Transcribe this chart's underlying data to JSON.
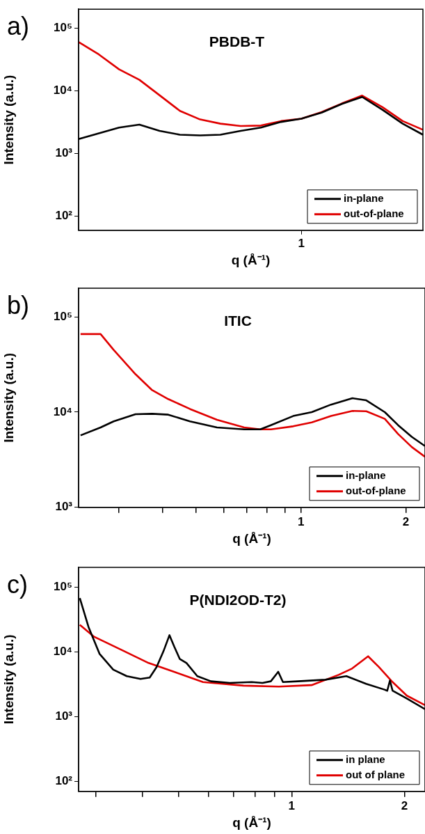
{
  "chart_data": [
    {
      "type": "line",
      "title": "PBDB-T",
      "xlabel": "q (Å⁻¹)",
      "ylabel": "Intensity (a.u.)",
      "annotations": [
        "a)"
      ],
      "log": "xy",
      "legend": "bottom right",
      "grid": false,
      "ylim": [
        60,
        200000
      ],
      "yticks": [
        {
          "value": 100,
          "label": "10²"
        },
        {
          "value": 1000,
          "label": "10³"
        },
        {
          "value": 10000,
          "label": "10⁴"
        },
        {
          "value": 100000,
          "label": "10⁵"
        }
      ],
      "categories": [
        null,
        null,
        null,
        null,
        null,
        null,
        null,
        null,
        null,
        null,
        null,
        "1",
        null,
        null,
        null,
        null,
        null,
        null
      ],
      "series": [
        {
          "name": "in-plane",
          "color": "#000000",
          "values": [
            1700,
            2100,
            2600,
            2900,
            2300,
            2000,
            1950,
            2000,
            2300,
            2600,
            3200,
            3600,
            4500,
            6200,
            8000,
            5000,
            3000,
            2000
          ]
        },
        {
          "name": "out-of-plane",
          "color": "#e00000",
          "values": [
            60000,
            38000,
            22000,
            15000,
            8500,
            4800,
            3500,
            3000,
            2750,
            2800,
            3300,
            3600,
            4600,
            6300,
            8400,
            5500,
            3300,
            2400
          ]
        }
      ]
    },
    {
      "type": "line",
      "title": "ITIC",
      "xlabel": "q (Å⁻¹)",
      "ylabel": "Intensity (a.u.)",
      "annotations": [
        "b)"
      ],
      "log": "xy",
      "legend": "bottom right",
      "grid": false,
      "xlim": [
        0.23,
        2.27
      ],
      "ylim": [
        1000,
        200000
      ],
      "xticks": [
        {
          "value": 0.3,
          "label": null
        },
        {
          "value": 0.4,
          "label": null
        },
        {
          "value": 0.5,
          "label": null
        },
        {
          "value": 0.6,
          "label": null
        },
        {
          "value": 0.7,
          "label": null
        },
        {
          "value": 0.8,
          "label": null
        },
        {
          "value": 0.9,
          "label": null
        },
        {
          "value": 1,
          "label": "1"
        },
        {
          "value": 2,
          "label": "2"
        }
      ],
      "yticks": [
        {
          "value": 1000,
          "label": "10³"
        },
        {
          "value": 10000,
          "label": "10⁴"
        },
        {
          "value": 100000,
          "label": "10⁵"
        }
      ],
      "x": [
        0.233,
        0.266,
        0.29,
        0.335,
        0.374,
        0.416,
        0.48,
        0.574,
        0.687,
        0.764,
        0.82,
        0.95,
        1.074,
        1.22,
        1.405,
        1.54,
        1.74,
        1.9,
        2.08,
        2.27
      ],
      "series": [
        {
          "name": "in-plane",
          "color": "#000000",
          "values": [
            5700,
            6900,
            8000,
            9500,
            9600,
            9400,
            8000,
            6900,
            6600,
            6600,
            7300,
            9100,
            10000,
            12000,
            14000,
            13300,
            10000,
            7300,
            5500,
            4400
          ]
        },
        {
          "name": "out-of-plane",
          "color": "#e00000",
          "values": [
            66000,
            66000,
            45000,
            25000,
            17000,
            13700,
            10800,
            8300,
            6900,
            6600,
            6600,
            7100,
            7800,
            9100,
            10300,
            10200,
            8500,
            5900,
            4300,
            3400
          ]
        }
      ]
    },
    {
      "type": "line",
      "title": "P(NDI2OD-T2)",
      "xlabel": "q (Å⁻¹)",
      "ylabel": "Intensity (a.u.)",
      "annotations": [
        "c)"
      ],
      "log": "xy",
      "legend": "bottom right",
      "grid": false,
      "xlim": [
        0.27,
        2.27
      ],
      "ylim": [
        70,
        200000
      ],
      "xticks": [
        {
          "value": 0.3,
          "label": null
        },
        {
          "value": 0.4,
          "label": null
        },
        {
          "value": 0.5,
          "label": null
        },
        {
          "value": 0.6,
          "label": null
        },
        {
          "value": 0.7,
          "label": null
        },
        {
          "value": 0.8,
          "label": null
        },
        {
          "value": 0.9,
          "label": null
        },
        1,
        2
      ],
      "yticks": [
        {
          "value": 100,
          "label": "10²"
        },
        {
          "value": 1000,
          "label": "10³"
        },
        {
          "value": 10000,
          "label": "10⁴"
        },
        {
          "value": 100000,
          "label": "10⁵"
        }
      ],
      "series": [
        {
          "name": "in plane",
          "color": "#000000",
          "x": [
            0.272,
            0.287,
            0.307,
            0.334,
            0.363,
            0.395,
            0.418,
            0.436,
            0.455,
            0.472,
            0.486,
            0.503,
            0.524,
            0.56,
            0.609,
            0.684,
            0.782,
            0.836,
            0.88,
            0.921,
            0.948,
            1.04,
            1.23,
            1.4,
            1.58,
            1.77,
            1.8,
            1.83,
            1.86,
            2.03,
            2.27
          ],
          "values": [
            67000,
            24000,
            9300,
            5300,
            4200,
            3800,
            4000,
            5800,
            10200,
            18000,
            12000,
            7700,
            6700,
            4200,
            3500,
            3300,
            3400,
            3300,
            3500,
            4900,
            3400,
            3500,
            3700,
            4200,
            3200,
            2600,
            2500,
            3600,
            2500,
            1900,
            1300
          ]
        },
        {
          "name": "out of plane",
          "color": "#e00000",
          "x": [
            0.272,
            0.297,
            0.351,
            0.415,
            0.49,
            0.58,
            0.744,
            0.924,
            1.13,
            1.335,
            1.45,
            1.6,
            1.71,
            1.86,
            2.03,
            2.27
          ],
          "values": [
            26000,
            17000,
            10700,
            6700,
            4800,
            3400,
            3000,
            2900,
            3050,
            4400,
            5500,
            8500,
            5800,
            3400,
            2100,
            1500
          ]
        }
      ]
    }
  ]
}
